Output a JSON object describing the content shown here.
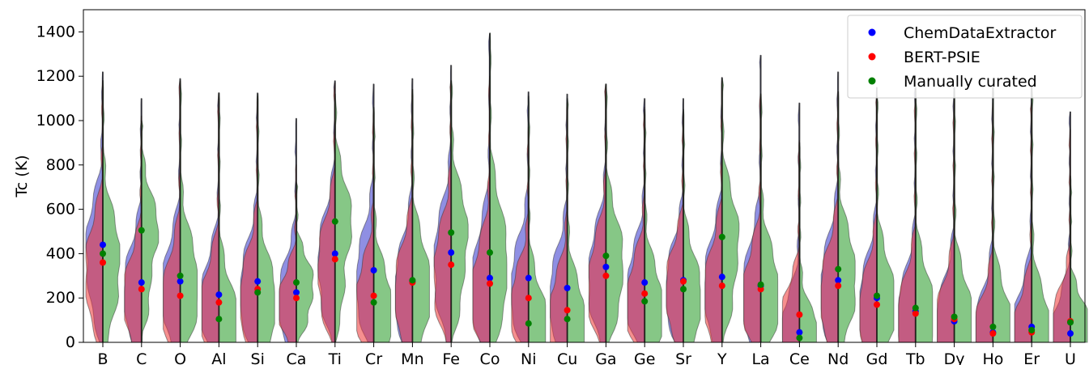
{
  "chart_data": {
    "type": "violin",
    "ylabel": "Tc (K)",
    "xlabel": "",
    "ylim": [
      0,
      1500
    ],
    "yticks": [
      0,
      200,
      400,
      600,
      800,
      1000,
      1200,
      1400
    ],
    "grid": false,
    "legend_position": "top-right",
    "categories": [
      "B",
      "C",
      "O",
      "Al",
      "Si",
      "Ca",
      "Ti",
      "Cr",
      "Mn",
      "Fe",
      "Co",
      "Ni",
      "Cu",
      "Ga",
      "Ge",
      "Sr",
      "Y",
      "La",
      "Ce",
      "Nd",
      "Gd",
      "Tb",
      "Dy",
      "Ho",
      "Er",
      "U"
    ],
    "series": [
      {
        "name": "ChemDataExtractor",
        "color": "#0000ff",
        "fill": "#3333cc",
        "mean_values": [
          440,
          270,
          275,
          215,
          275,
          225,
          400,
          325,
          275,
          405,
          290,
          290,
          245,
          340,
          270,
          280,
          295,
          255,
          45,
          280,
          200,
          140,
          95,
          45,
          70,
          40
        ]
      },
      {
        "name": "BERT-PSIE",
        "color": "#ff0000",
        "fill": "#ee3333",
        "mean_values": [
          360,
          240,
          210,
          180,
          240,
          200,
          375,
          210,
          270,
          350,
          265,
          200,
          145,
          300,
          220,
          275,
          255,
          240,
          125,
          255,
          170,
          130,
          105,
          40,
          45,
          95
        ]
      },
      {
        "name": "Manually curated",
        "color": "#008000",
        "fill": "#229922",
        "mean_values": [
          400,
          505,
          300,
          105,
          225,
          270,
          545,
          180,
          280,
          495,
          405,
          85,
          105,
          390,
          185,
          240,
          475,
          260,
          20,
          330,
          210,
          155,
          115,
          70,
          55,
          90
        ]
      }
    ],
    "violin_max": [
      [
        1220,
        1100,
        1190,
        1125,
        1125,
        1010,
        1180,
        1165,
        1190,
        1250,
        1390,
        1130,
        1120,
        1165,
        1100,
        1100,
        1195,
        1295,
        1080,
        1220,
        1150,
        1150,
        1150,
        1150,
        1150,
        1040
      ],
      [
        1180,
        1020,
        1180,
        1125,
        1110,
        800,
        1170,
        1050,
        1140,
        1180,
        1200,
        970,
        1080,
        1160,
        1060,
        1040,
        1180,
        1120,
        910,
        1130,
        1110,
        1100,
        1100,
        1080,
        1080,
        960
      ],
      [
        1180,
        1000,
        1180,
        1125,
        1120,
        720,
        1120,
        1060,
        1140,
        1180,
        1395,
        1110,
        1100,
        1165,
        1050,
        1050,
        1190,
        1120,
        900,
        1130,
        1110,
        1140,
        1140,
        1150,
        1150,
        750
      ]
    ]
  }
}
